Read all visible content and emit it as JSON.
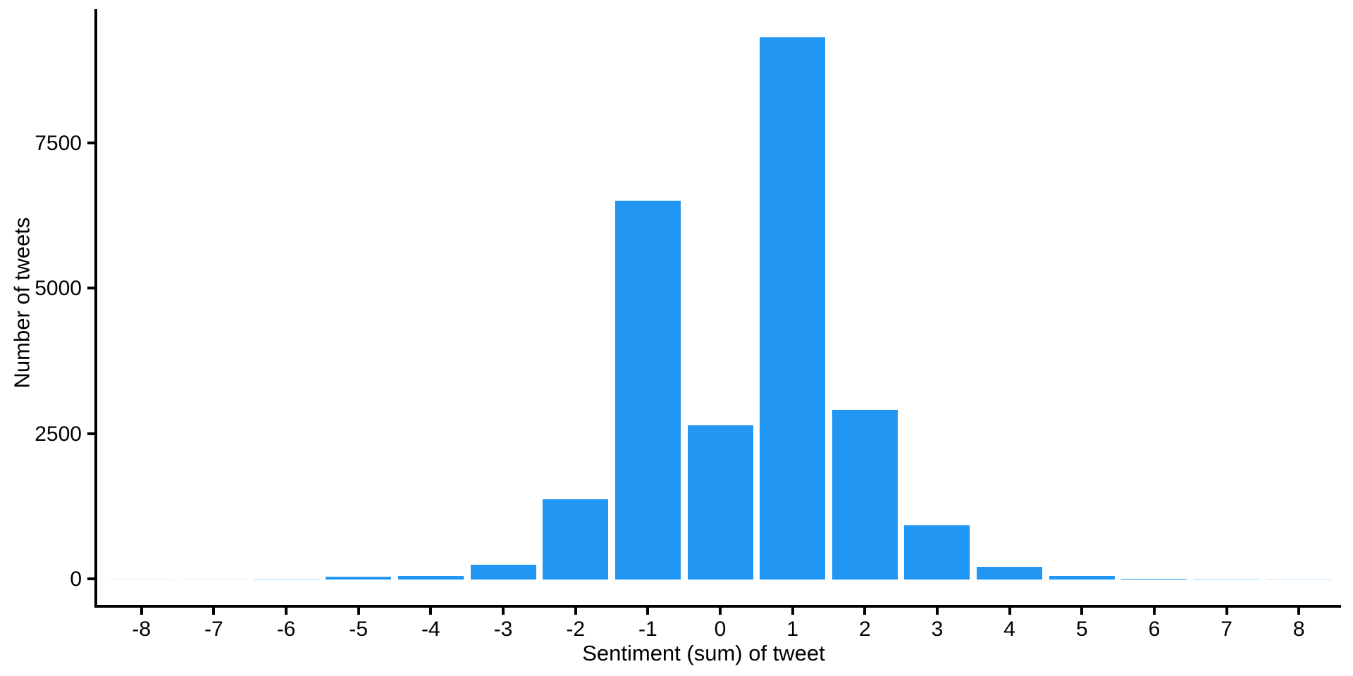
{
  "chart_data": {
    "type": "bar",
    "subtype": "histogram",
    "title": "",
    "xlabel": "Sentiment (sum) of tweet",
    "ylabel": "Number of tweets",
    "categories": [
      -8,
      -7,
      -6,
      -5,
      -4,
      -3,
      -2,
      -1,
      0,
      1,
      2,
      3,
      4,
      5,
      6,
      7,
      8
    ],
    "values": [
      2,
      2,
      5,
      45,
      60,
      255,
      1380,
      6520,
      2650,
      9330,
      2920,
      930,
      215,
      60,
      15,
      5,
      3
    ],
    "x_tick_labels": [
      "-8",
      "-7",
      "-6",
      "-5",
      "-4",
      "-3",
      "-2",
      "-1",
      "0",
      "1",
      "2",
      "3",
      "4",
      "5",
      "6",
      "7",
      "8"
    ],
    "y_tick_labels": [
      "0",
      "2500",
      "5000",
      "7500"
    ],
    "y_tick_values": [
      0,
      2500,
      5000,
      7500
    ],
    "xlim": [
      -8.6,
      8.6
    ],
    "ylim": [
      0,
      9800
    ],
    "grid": "off",
    "legend": "none",
    "bar_color": "#2196F3",
    "axis_color": "#000000",
    "text_color": "#000000",
    "background_color": "#ffffff"
  }
}
